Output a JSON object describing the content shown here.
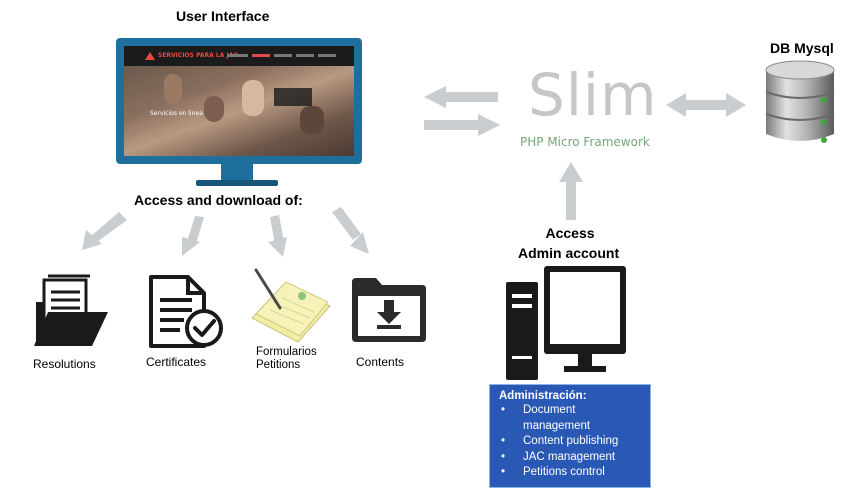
{
  "user_interface": {
    "title": "User Interface",
    "screen_brand": "SERVICIOS PARA LA JAC",
    "screen_caption": "Servicios en linea"
  },
  "access_download": {
    "title": "Access and download of:",
    "items": [
      {
        "label": "Resolutions",
        "icon": "folder-documents-icon"
      },
      {
        "label": "Certificates",
        "icon": "certificate-check-icon"
      },
      {
        "label": "Formularios\nPetitions",
        "icon": "pen-paper-icon"
      },
      {
        "label": "Contents",
        "icon": "folder-download-icon"
      }
    ]
  },
  "slim": {
    "word": "Slim",
    "subtitle": "PHP Micro Framework"
  },
  "db": {
    "title": "DB Mysql",
    "icon": "database-icon"
  },
  "admin": {
    "access_label": "Access",
    "account_label": "Admin account",
    "icon": "desktop-computer-icon",
    "box_title": "Administración:",
    "box_items": [
      "Document management",
      "Content publishing",
      "JAC management",
      "Petitions control"
    ]
  },
  "colors": {
    "monitor": "#1f6f9c",
    "arrow": "#c9cdd0",
    "slim_text": "#c6c6c6",
    "slim_sub": "#7aa67a",
    "admin_box": "#2a59b5"
  }
}
